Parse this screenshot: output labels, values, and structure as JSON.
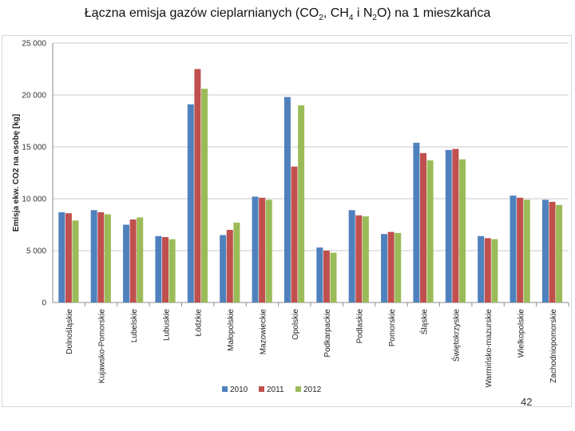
{
  "slide": {
    "title_prefix": "Łączna emisja gazów cieplarnianych (CO",
    "title_sub1": "2",
    "title_mid1": ", CH",
    "title_sub2": "4",
    "title_mid2": " i N",
    "title_sub3": "2",
    "title_suffix": "O) na 1 mieszkańca",
    "page_number": "42"
  },
  "chart_data": {
    "type": "bar",
    "title": "",
    "xlabel": "",
    "ylabel": "Emisja ekw. CO2 na osobę [kg]",
    "ylim": [
      0,
      25000
    ],
    "yticks": [
      0,
      5000,
      10000,
      15000,
      20000,
      25000
    ],
    "ytick_labels": [
      "0",
      "5 000",
      "10 000",
      "15 000",
      "20 000",
      "25 000"
    ],
    "grid": true,
    "legend_position": "bottom",
    "categories": [
      "Dolnośląskie",
      "Kujawsko-Pomorskie",
      "Lubelskie",
      "Lubuskie",
      "Łódzkie",
      "Małopolskie",
      "Mazowieckie",
      "Opolskie",
      "Podkarpackie",
      "Podlaskie",
      "Pomorskie",
      "Śląskie",
      "Świętokrzyskie",
      "Warmińsko-mazurskie",
      "Wielkopolskie",
      "Zachodniopomorskie"
    ],
    "series": [
      {
        "name": "2010",
        "color": "#4f81bd",
        "values": [
          8700,
          8900,
          7500,
          6400,
          19100,
          6500,
          10200,
          19800,
          5300,
          8900,
          6600,
          15400,
          14700,
          6400,
          10300,
          9900
        ]
      },
      {
        "name": "2011",
        "color": "#c0504d",
        "values": [
          8600,
          8700,
          8000,
          6300,
          22500,
          7000,
          10100,
          13100,
          5000,
          8400,
          6800,
          14400,
          14800,
          6200,
          10100,
          9700
        ]
      },
      {
        "name": "2012",
        "color": "#9bbb59",
        "values": [
          7900,
          8500,
          8200,
          6100,
          20600,
          7700,
          9900,
          19000,
          4800,
          8300,
          6700,
          13700,
          13800,
          6100,
          9900,
          9400
        ]
      }
    ]
  }
}
